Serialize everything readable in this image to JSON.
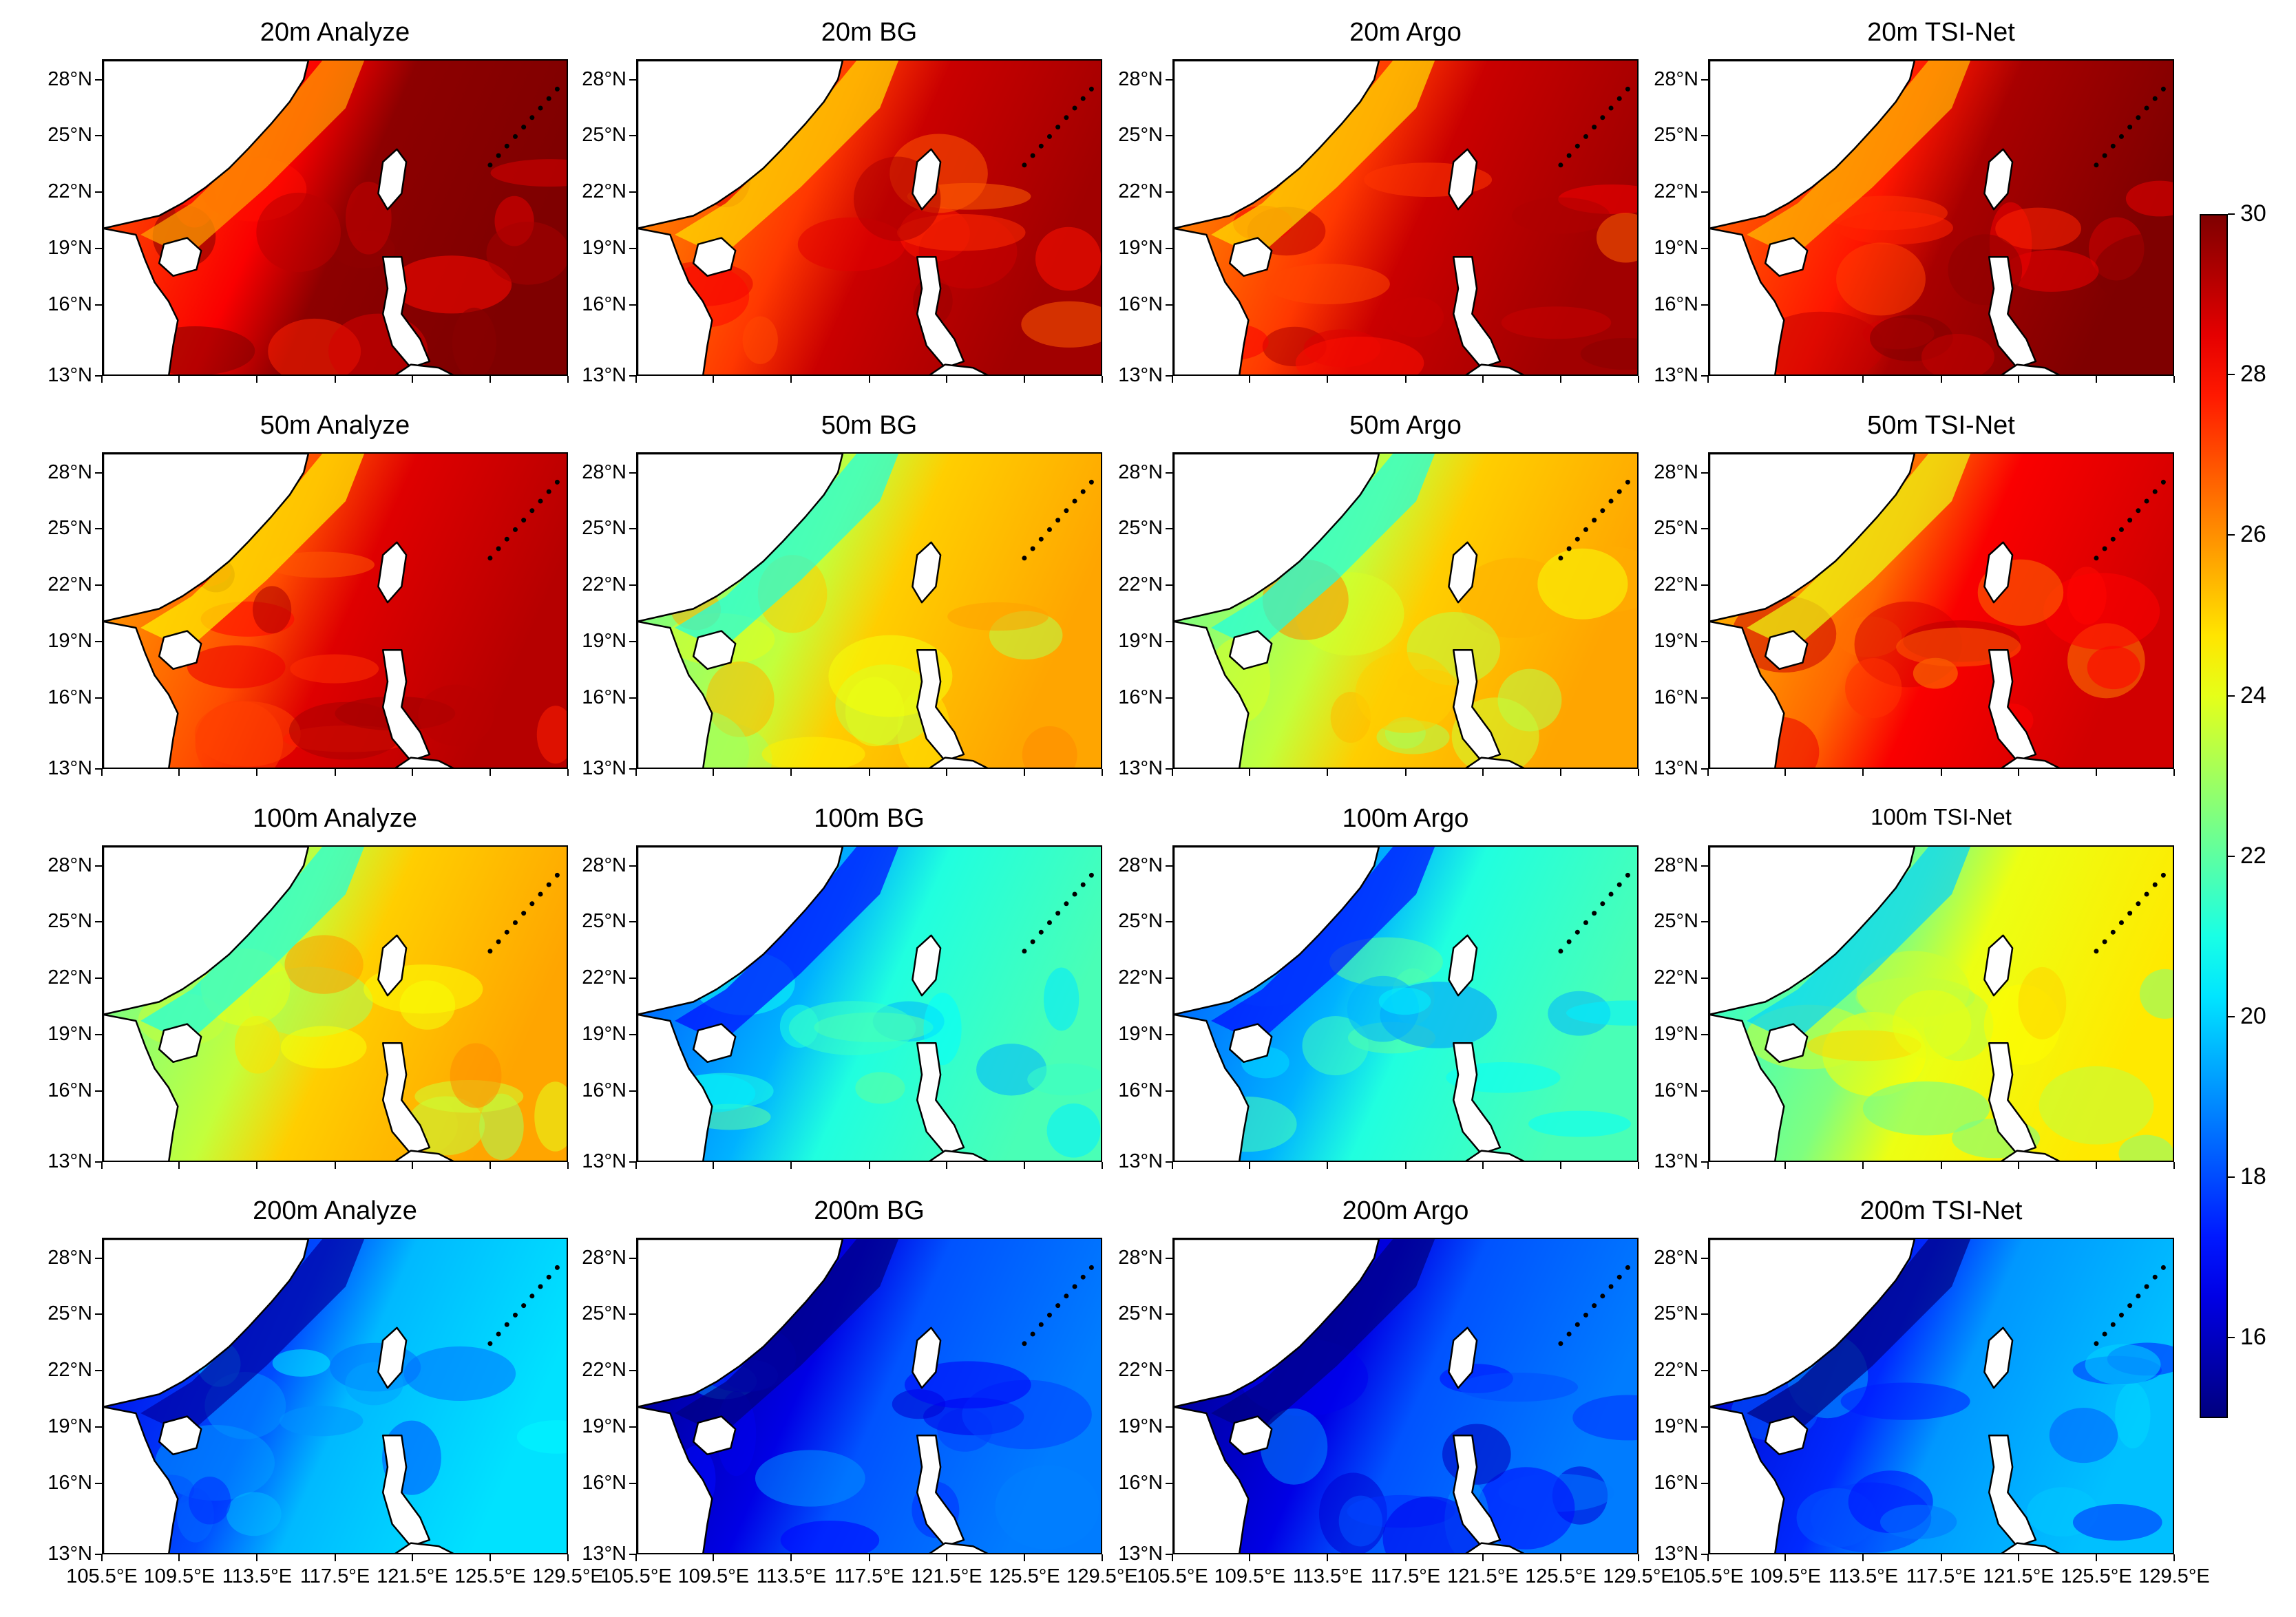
{
  "figure": {
    "rows": [
      "20m",
      "50m",
      "100m",
      "200m"
    ],
    "columns": [
      "Analyze",
      "BG",
      "Argo",
      "TSI-Net"
    ],
    "panels": [
      {
        "title": "20m Analyze",
        "depth": "20m",
        "source": "Analyze",
        "mean_temp": 29.2
      },
      {
        "title": "20m BG",
        "depth": "20m",
        "source": "BG",
        "mean_temp": 28.3
      },
      {
        "title": "20m Argo",
        "depth": "20m",
        "source": "Argo",
        "mean_temp": 28.3
      },
      {
        "title": "20m TSI-Net",
        "depth": "20m",
        "source": "TSI-Net",
        "mean_temp": 28.8
      },
      {
        "title": "50m Analyze",
        "depth": "50m",
        "source": "Analyze",
        "mean_temp": 28.0
      },
      {
        "title": "50m BG",
        "depth": "50m",
        "source": "BG",
        "mean_temp": 24.5
      },
      {
        "title": "50m Argo",
        "depth": "50m",
        "source": "Argo",
        "mean_temp": 24.5
      },
      {
        "title": "50m TSI-Net",
        "depth": "50m",
        "source": "TSI-Net",
        "mean_temp": 27.6
      },
      {
        "title": "100m Analyze",
        "depth": "100m",
        "source": "Analyze",
        "mean_temp": 24.5
      },
      {
        "title": "100m BG",
        "depth": "100m",
        "source": "BG",
        "mean_temp": 20.5
      },
      {
        "title": "100m Argo",
        "depth": "100m",
        "source": "Argo",
        "mean_temp": 20.5
      },
      {
        "title": "100m TSI-Net",
        "depth": "100m",
        "source": "TSI-Net",
        "mean_temp": 23.5
      },
      {
        "title": "200m Analyze",
        "depth": "200m",
        "source": "Analyze",
        "mean_temp": 19.0
      },
      {
        "title": "200m BG",
        "depth": "200m",
        "source": "BG",
        "mean_temp": 17.5
      },
      {
        "title": "200m Argo",
        "depth": "200m",
        "source": "Argo",
        "mean_temp": 17.5
      },
      {
        "title": "200m TSI-Net",
        "depth": "200m",
        "source": "TSI-Net",
        "mean_temp": 18.5
      }
    ],
    "lat_ticks": [
      "28°N",
      "25°N",
      "22°N",
      "19°N",
      "16°N",
      "13°N"
    ],
    "lon_ticks": [
      "105.5°E",
      "109.5°E",
      "113.5°E",
      "117.5°E",
      "121.5°E",
      "125.5°E",
      "129.5°E"
    ],
    "colorbar": {
      "min": 15,
      "max": 30,
      "ticks": [
        "30",
        "28",
        "26",
        "24",
        "22",
        "20",
        "18",
        "16"
      ],
      "colormap": "jet"
    },
    "colors": {
      "land": "#ffffff",
      "coast": "#000000",
      "jet": [
        "#00007f",
        "#0000ff",
        "#007fff",
        "#00ffff",
        "#7fff7f",
        "#ffff00",
        "#ff7f00",
        "#ff0000",
        "#7f0000"
      ]
    }
  }
}
